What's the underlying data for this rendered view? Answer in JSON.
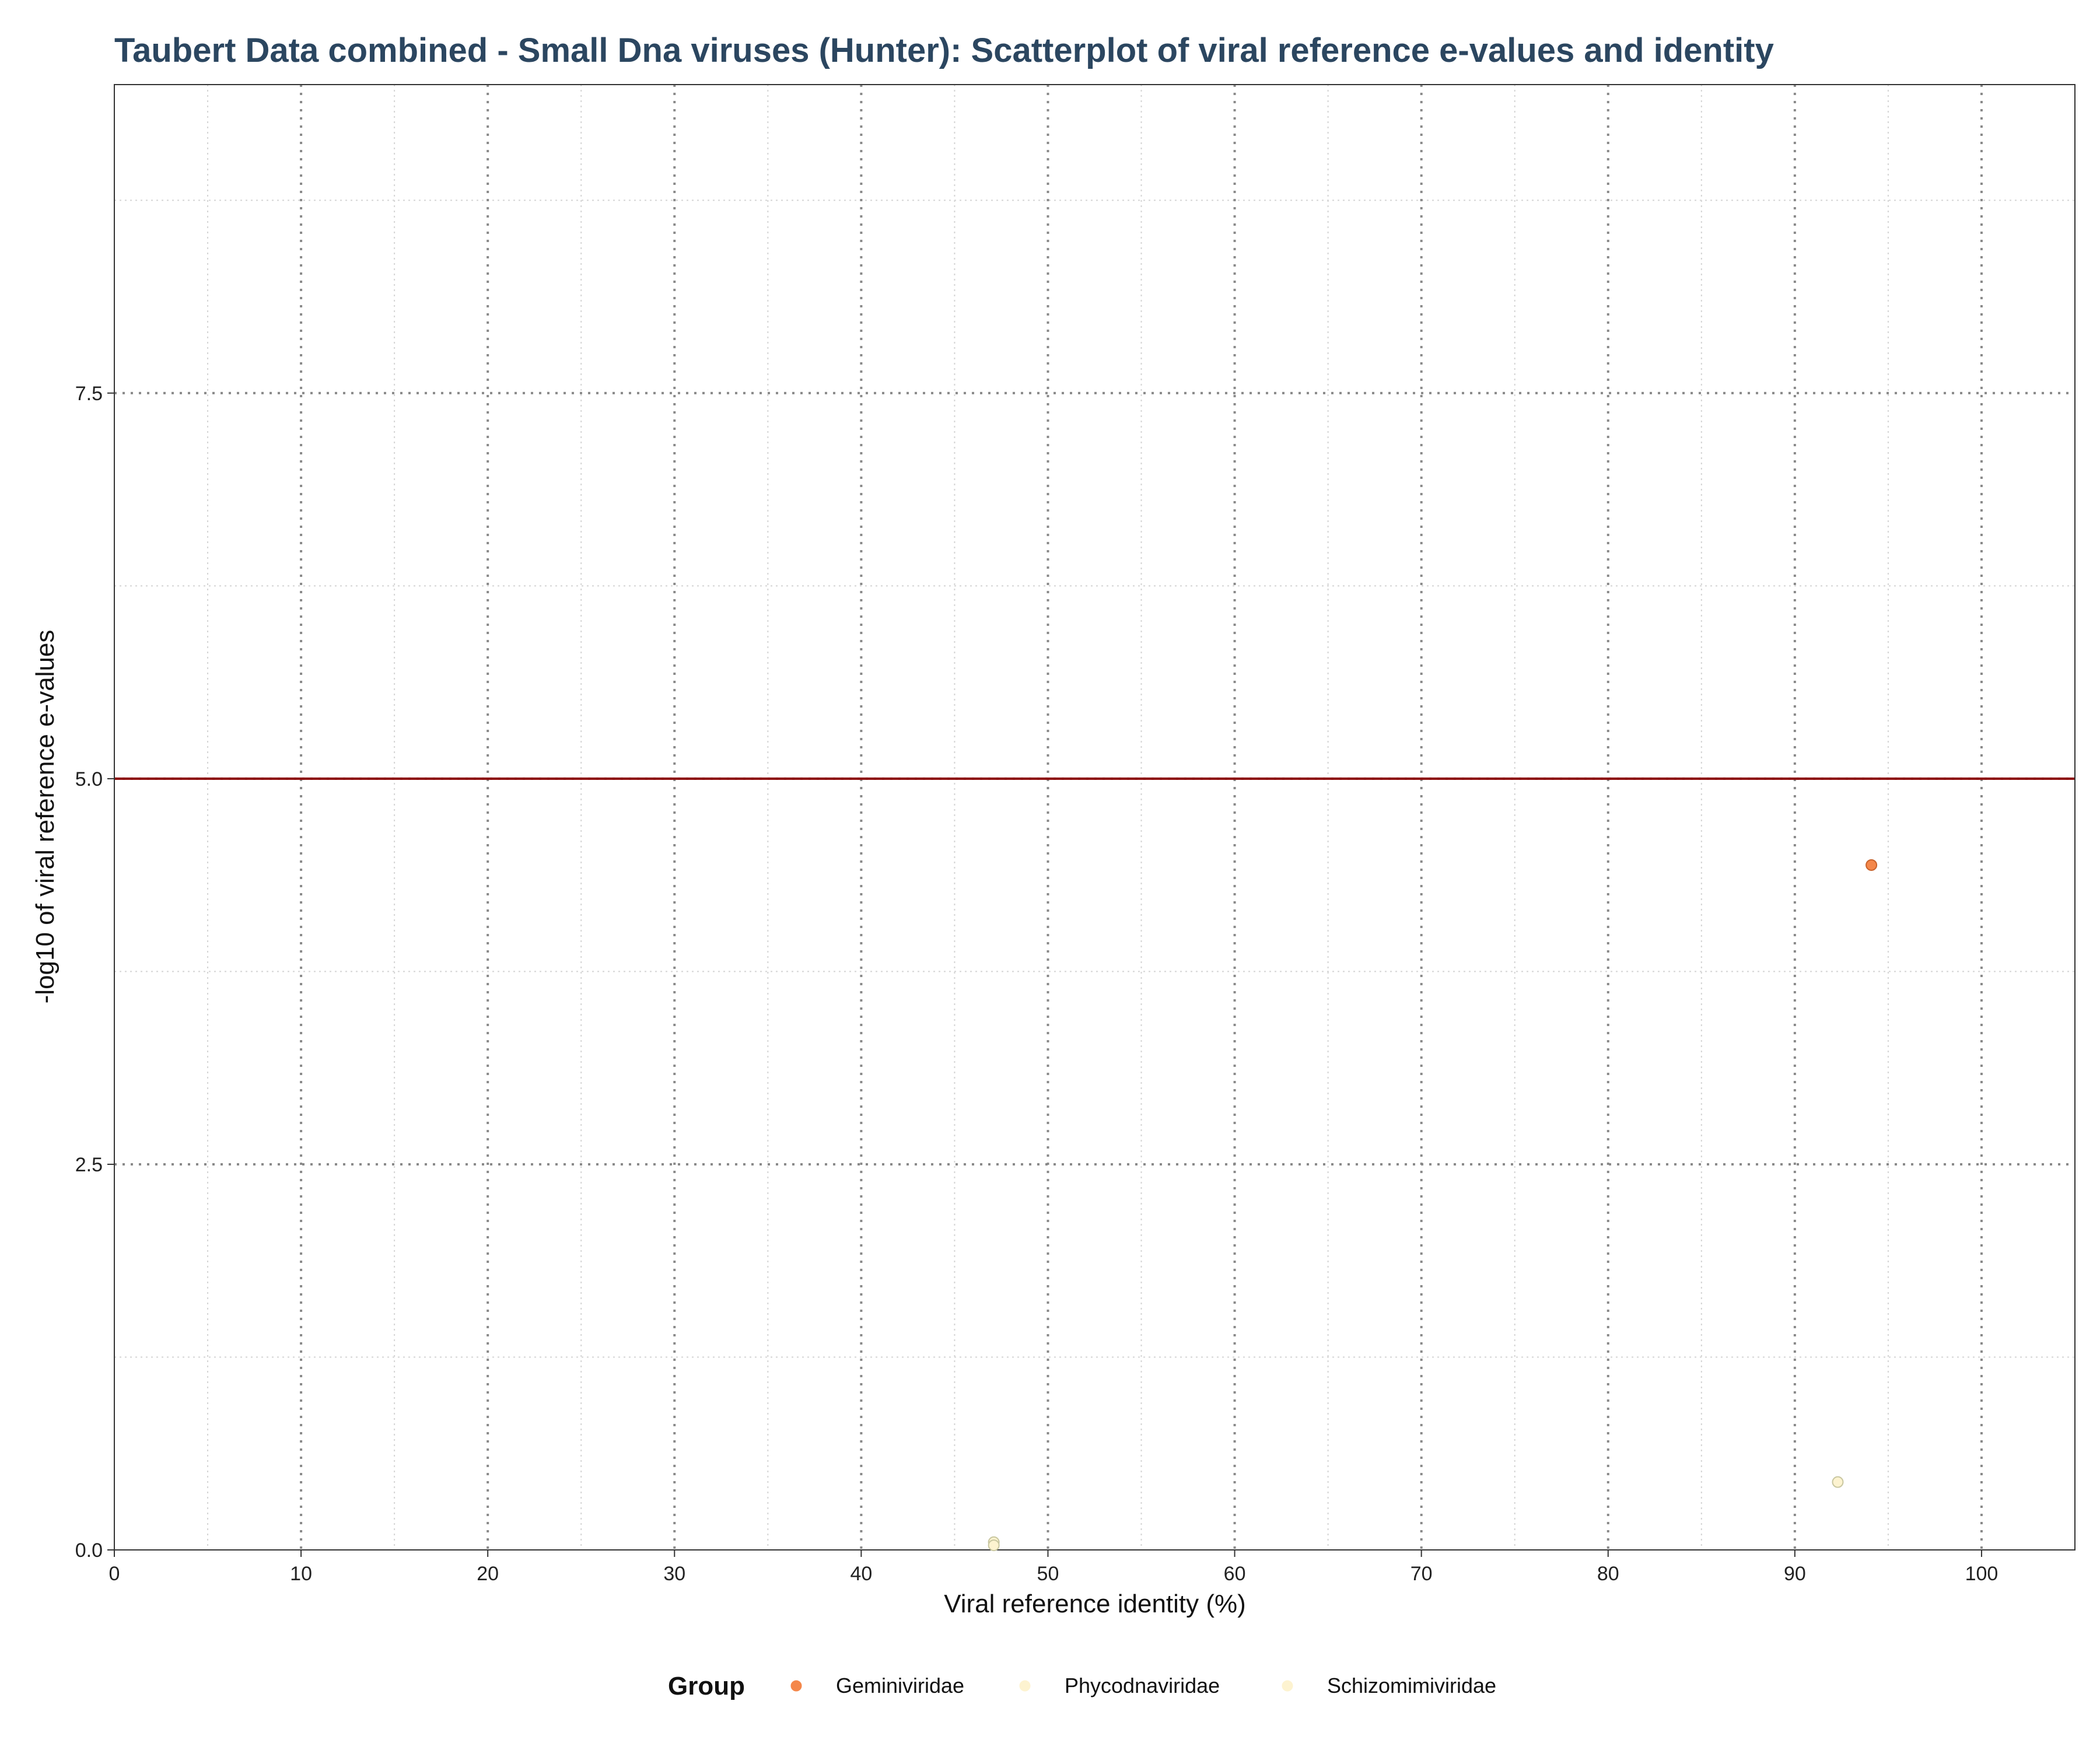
{
  "chart_data": {
    "type": "scatter",
    "title": "Taubert Data combined - Small Dna viruses (Hunter): Scatterplot of viral reference e-values and identity",
    "xlabel": "Viral reference identity (%)",
    "ylabel": "-log10 of viral reference e-values",
    "xlim": [
      0,
      105
    ],
    "ylim": [
      0,
      9.5
    ],
    "x_ticks": [
      0,
      10,
      20,
      30,
      40,
      50,
      60,
      70,
      80,
      90,
      100
    ],
    "x_tick_labels": [
      "0",
      "10",
      "20",
      "30",
      "40",
      "50",
      "60",
      "70",
      "80",
      "90",
      "100"
    ],
    "y_ticks": [
      0,
      2.5,
      5,
      7.5
    ],
    "y_tick_labels": [
      "0.0",
      "2.5",
      "5.0",
      "7.5"
    ],
    "threshold_line": {
      "y": 5.0,
      "color": "#8b0000"
    },
    "grid": true,
    "legend": {
      "title": "Group",
      "position": "bottom"
    },
    "series": [
      {
        "name": "Geminiviridae",
        "color": "#f4874a",
        "stroke": "#c8622b",
        "points": [
          {
            "x": 94.1,
            "y": 4.44
          }
        ]
      },
      {
        "name": "Phycodnaviridae",
        "color": "#fdf3d0",
        "stroke": "#c9c7a0",
        "points": [
          {
            "x": 92.3,
            "y": 0.44
          }
        ]
      },
      {
        "name": "Schizomimiviridae",
        "color": "#fdf3d0",
        "stroke": "#c9c7a0",
        "points": [
          {
            "x": 47.1,
            "y": 0.05
          },
          {
            "x": 47.1,
            "y": 0.03
          }
        ]
      }
    ]
  }
}
